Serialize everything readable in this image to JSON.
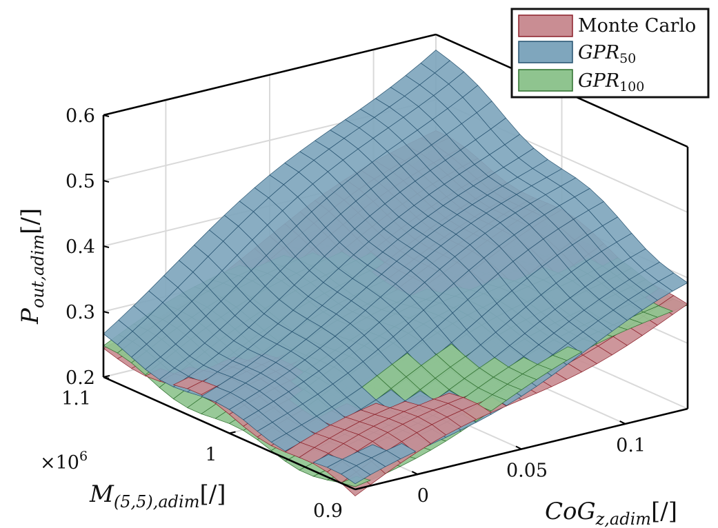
{
  "chart_data": {
    "type": "surface",
    "x_axis": {
      "label_base": "CoG",
      "label_sub": "z,adim",
      "label_suffix": "[/]",
      "ticks": [
        "0",
        "0.05",
        "0.1"
      ],
      "range": [
        -0.03,
        0.13
      ]
    },
    "y_axis": {
      "label_base": "M",
      "label_sub": "(5,5),adim",
      "label_suffix": "[/]",
      "ticks": [
        "0.9",
        "1",
        "1.1"
      ],
      "multiplier": "×10",
      "multiplier_exp": "6",
      "range": [
        0.9,
        1.1
      ]
    },
    "z_axis": {
      "label_base": "P",
      "label_sub": "out,adim",
      "label_suffix": "[/]",
      "ticks": [
        "0.2",
        "0.3",
        "0.4",
        "0.5",
        "0.6"
      ],
      "range": [
        0.2,
        0.6
      ]
    },
    "grid": true,
    "legend_position": "top-right",
    "series": [
      {
        "name": "Monte Carlo",
        "color": "#c98d93",
        "edge": "#8b1f28",
        "corners": {
          "x_min_y_min": 0.19,
          "x_min_y_max": 0.24,
          "x_max_y_min": 0.35,
          "x_max_y_max": 0.45
        }
      },
      {
        "name_base": "GPR",
        "name_sub": "50",
        "color": "#7fa6bd",
        "edge": "#23506e",
        "corners": {
          "x_min_y_min": 0.19,
          "x_min_y_max": 0.27,
          "x_max_y_min": 0.38,
          "x_max_y_max": 0.59
        }
      },
      {
        "name_base": "GPR",
        "name_sub": "100",
        "color": "#8fc48f",
        "edge": "#2c6e2c",
        "corners": {
          "x_min_y_min": 0.2,
          "x_min_y_max": 0.24,
          "x_max_y_min": 0.37,
          "x_max_y_max": 0.43
        }
      }
    ]
  }
}
